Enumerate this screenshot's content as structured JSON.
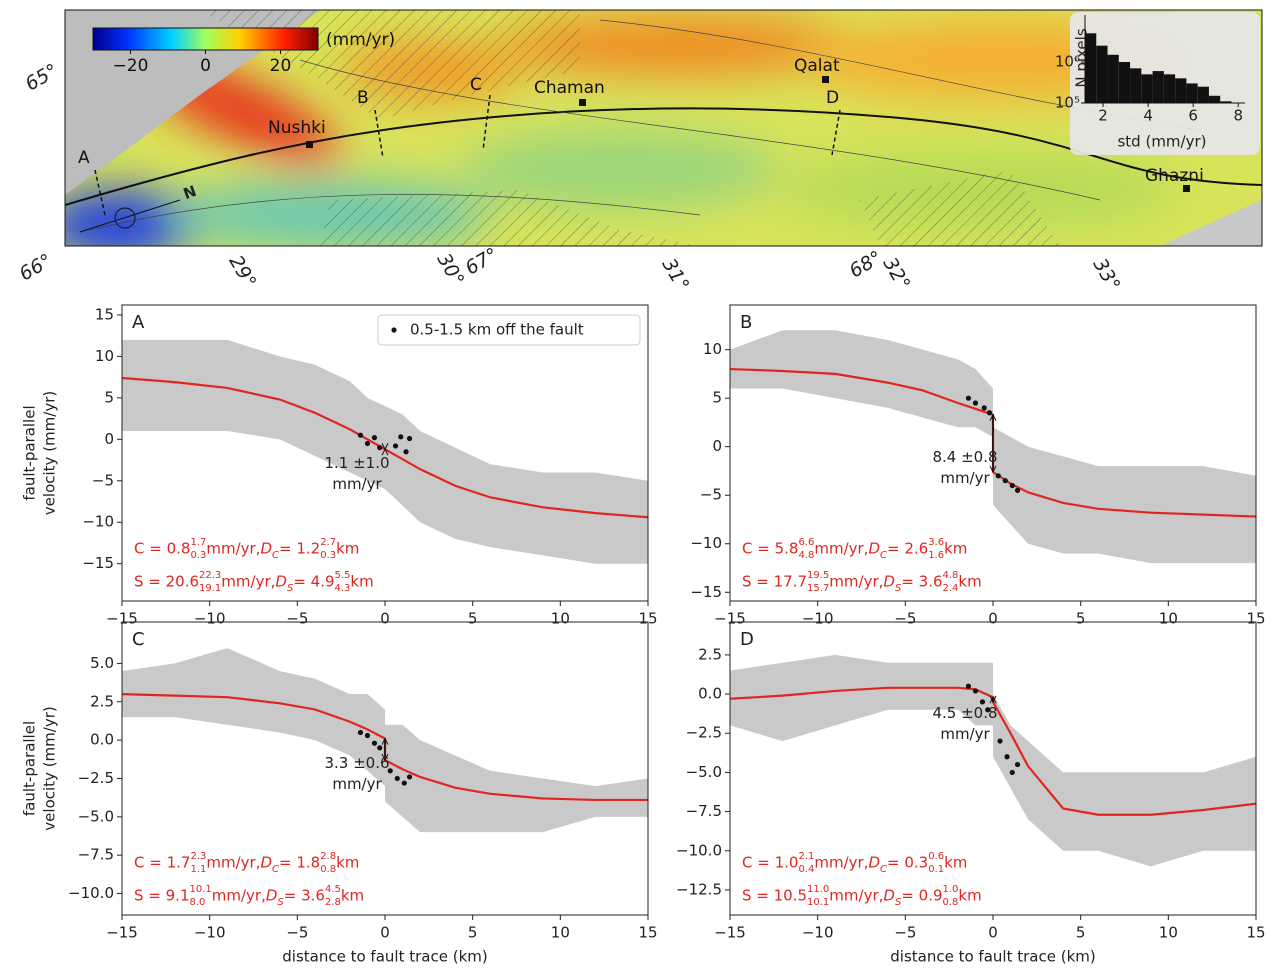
{
  "map": {
    "colorbar": {
      "label": "(mm/yr)",
      "lim": [
        -30,
        30
      ],
      "ticks": [
        {
          "value": -20,
          "label": "−20"
        },
        0,
        20
      ]
    },
    "places": [
      "Nushki",
      "Chaman",
      "Qalat",
      "Ghazni"
    ],
    "profiles": [
      "A",
      "B",
      "C",
      "D"
    ],
    "north": "N",
    "edge_labels": [
      "65°",
      "66°",
      "29°",
      "30°",
      "67°",
      "31°",
      "68°",
      "32°",
      "33°"
    ],
    "inset": {
      "type": "histogram",
      "ylabel": "N pixels",
      "xlabel": "std (mm/yr)",
      "color": "#111111",
      "bins": [
        1.2,
        1.7,
        2.2,
        2.7,
        3.2,
        3.7,
        4.2,
        4.7,
        5.2,
        5.7,
        6.2,
        6.7,
        7.2,
        7.7,
        8.2
      ],
      "counts": [
        5000000,
        2500000,
        1500000,
        1000000,
        700000,
        500000,
        600000,
        500000,
        400000,
        300000,
        250000,
        150000,
        110000,
        100000
      ],
      "xlim": [
        1.2,
        8.3
      ],
      "ylim": [
        100000,
        14000000
      ],
      "yscale": "log",
      "xticks": [
        2,
        4,
        6,
        8
      ],
      "yticks": [
        {
          "value": 100000,
          "label": "10⁵"
        },
        {
          "value": 1000000,
          "label": "10⁶"
        }
      ]
    }
  },
  "chart_data": [
    {
      "type": "line",
      "title": "A",
      "legend": "upper right",
      "ylabel": [
        "fault-parallel",
        "velocity (mm/yr)"
      ],
      "xlim": [
        -15,
        15
      ],
      "ylim": [
        -19.5,
        16.2
      ],
      "xticks": [
        {
          "value": -15,
          "label": "−15"
        },
        {
          "value": -10,
          "label": "−10"
        },
        {
          "value": -5,
          "label": "−5"
        },
        0,
        5,
        10,
        15
      ],
      "yticks": [
        15,
        10,
        5,
        0,
        {
          "value": -5,
          "label": "−5"
        },
        {
          "value": -10,
          "label": "−10"
        },
        {
          "value": -15,
          "label": "−15"
        }
      ],
      "x": [
        -15,
        -12,
        -9,
        -6,
        -4,
        -2,
        -1,
        0,
        0,
        1,
        2,
        4,
        6,
        9,
        12,
        15
      ],
      "band": {
        "color": "#c9c9c9",
        "upper": [
          12,
          12,
          12,
          10,
          9,
          7,
          5,
          4,
          4,
          3,
          1,
          -1,
          -3,
          -4,
          -4,
          -5
        ],
        "lower": [
          1,
          1,
          1,
          0,
          -2,
          -4,
          -5,
          -6,
          -6,
          -8,
          -10,
          -12,
          -13,
          -14,
          -15,
          -15
        ]
      },
      "series": [
        {
          "color": "#e0261f",
          "values": [
            7.4,
            6.9,
            6.2,
            4.8,
            3.2,
            1.2,
            0.0,
            -1.2,
            -1.2,
            -2.4,
            -3.6,
            -5.6,
            -7.0,
            -8.2,
            -8.9,
            -9.4
          ]
        },
        {
          "name": "0.5-1.5 km off the fault",
          "color": "#111111",
          "x": [
            -1.4,
            -1.0,
            -0.6,
            -0.3,
            0.6,
            0.9,
            1.2,
            1.4
          ],
          "values": [
            0.5,
            -0.5,
            0.2,
            -1.0,
            -0.8,
            0.3,
            -1.5,
            0.1
          ]
        }
      ],
      "offset_label": [
        "1.1 ±1.0",
        "mm/yr"
      ],
      "annotations": [
        [
          {
            "text": "C = 0.8"
          },
          {
            "sup": "1.7",
            "sub": "0.3"
          },
          {
            "text": " mm/yr, "
          },
          {
            "text": "D",
            "italic": true
          },
          {
            "sub": "C"
          },
          {
            "text": " = 1.2"
          },
          {
            "sup": "2.7",
            "sub": "0.3"
          },
          {
            "text": " km"
          }
        ],
        [
          {
            "text": "S = 20.6"
          },
          {
            "sup": "22.3",
            "sub": "19.1"
          },
          {
            "text": " mm/yr, "
          },
          {
            "text": "D",
            "italic": true
          },
          {
            "sub": "S"
          },
          {
            "text": " = 4.9"
          },
          {
            "sup": "5.5",
            "sub": "4.3"
          },
          {
            "text": " km"
          }
        ]
      ]
    },
    {
      "type": "line",
      "title": "B",
      "xlim": [
        -15,
        15
      ],
      "ylim": [
        -15.9,
        14.6
      ],
      "xticks": [
        {
          "value": -15,
          "label": "−15"
        },
        {
          "value": -10,
          "label": "−10"
        },
        {
          "value": -5,
          "label": "−5"
        },
        0,
        5,
        10,
        15
      ],
      "yticks": [
        10,
        5,
        0,
        {
          "value": -5,
          "label": "−5"
        },
        {
          "value": -10,
          "label": "−10"
        },
        {
          "value": -15,
          "label": "−15"
        }
      ],
      "x": [
        -15,
        -12,
        -9,
        -6,
        -4,
        -2,
        -1,
        0,
        0,
        1,
        2,
        4,
        6,
        9,
        12,
        15
      ],
      "band": {
        "color": "#c9c9c9",
        "upper": [
          10,
          12,
          12,
          11,
          10,
          9,
          8,
          6,
          2,
          1,
          0,
          -1,
          -2,
          -2,
          -2,
          -3
        ],
        "lower": [
          6,
          6,
          5,
          4,
          3,
          2,
          2,
          1,
          -6,
          -8,
          -10,
          -11,
          -11,
          -12,
          -12,
          -12
        ]
      },
      "series": [
        {
          "color": "#e0261f",
          "values": [
            8.0,
            7.8,
            7.5,
            6.6,
            5.8,
            4.5,
            3.9,
            3.3,
            -2.6,
            -3.8,
            -4.7,
            -5.8,
            -6.4,
            -6.8,
            -7.0,
            -7.2
          ]
        },
        {
          "color": "#111111",
          "x": [
            -1.4,
            -1.0,
            -0.5,
            -0.2,
            0.3,
            0.7,
            1.1,
            1.4
          ],
          "values": [
            5,
            4.5,
            4,
            3.5,
            -3,
            -3.5,
            -4,
            -4.5
          ]
        }
      ],
      "offset_label": [
        "8.4 ±0.8",
        "mm/yr"
      ],
      "annotations": [
        [
          {
            "text": "C = 5.8"
          },
          {
            "sup": "6.6",
            "sub": "4.8"
          },
          {
            "text": " mm/yr, "
          },
          {
            "text": "D",
            "italic": true
          },
          {
            "sub": "C"
          },
          {
            "text": " = 2.6"
          },
          {
            "sup": "3.6",
            "sub": "1.6"
          },
          {
            "text": " km"
          }
        ],
        [
          {
            "text": "S = 17.7"
          },
          {
            "sup": "19.5",
            "sub": "15.7"
          },
          {
            "text": " mm/yr, "
          },
          {
            "text": "D",
            "italic": true
          },
          {
            "sub": "S"
          },
          {
            "text": " = 3.6"
          },
          {
            "sup": "4.8",
            "sub": "2.4"
          },
          {
            "text": " km"
          }
        ]
      ]
    },
    {
      "type": "line",
      "title": "C",
      "ylabel": [
        "fault-parallel",
        "velocity (mm/yr)"
      ],
      "xlabel": "distance to fault trace (km)",
      "xlim": [
        -15,
        15
      ],
      "ylim": [
        -11.4,
        7.7
      ],
      "xticks": [
        {
          "value": -15,
          "label": "−15"
        },
        {
          "value": -10,
          "label": "−10"
        },
        {
          "value": -5,
          "label": "−5"
        },
        0,
        5,
        10,
        15
      ],
      "yticks": [
        {
          "value": 5,
          "label": "5.0"
        },
        2.5,
        {
          "value": 0,
          "label": "0.0"
        },
        {
          "value": -2.5,
          "label": "−2.5"
        },
        {
          "value": -5,
          "label": "−5.0"
        },
        {
          "value": -7.5,
          "label": "−7.5"
        },
        {
          "value": -10,
          "label": "−10.0"
        }
      ],
      "x": [
        -15,
        -12,
        -9,
        -6,
        -4,
        -2,
        -1,
        0,
        0,
        1,
        2,
        4,
        6,
        9,
        12,
        15
      ],
      "band": {
        "color": "#c9c9c9",
        "upper": [
          4.5,
          5,
          6,
          4.5,
          4,
          3,
          3,
          2,
          1,
          1,
          0,
          -1,
          -2,
          -2.5,
          -3,
          -2.5
        ],
        "lower": [
          1.5,
          1.5,
          1,
          0.5,
          0,
          -1,
          -2,
          -3,
          -4,
          -5,
          -6,
          -6,
          -6,
          -6,
          -5,
          -5
        ]
      },
      "series": [
        {
          "color": "#e0261f",
          "values": [
            3.0,
            2.9,
            2.8,
            2.4,
            2.0,
            1.2,
            0.7,
            0.1,
            -1.3,
            -1.9,
            -2.4,
            -3.1,
            -3.5,
            -3.8,
            -3.9,
            -3.9
          ]
        },
        {
          "color": "#111111",
          "x": [
            -1.4,
            -1.0,
            -0.6,
            -0.3,
            0.3,
            0.7,
            1.1,
            1.4
          ],
          "values": [
            0.5,
            0.3,
            -0.2,
            -0.5,
            -2,
            -2.5,
            -2.8,
            -2.4
          ]
        }
      ],
      "offset_label": [
        "3.3 ±0.6",
        "mm/yr"
      ],
      "annotations": [
        [
          {
            "text": "C = 1.7"
          },
          {
            "sup": "2.3",
            "sub": "1.1"
          },
          {
            "text": " mm/yr, "
          },
          {
            "text": "D",
            "italic": true
          },
          {
            "sub": "C"
          },
          {
            "text": " = 1.8"
          },
          {
            "sup": "2.8",
            "sub": "0.8"
          },
          {
            "text": " km"
          }
        ],
        [
          {
            "text": "S = 9.1"
          },
          {
            "sup": "10.1",
            "sub": "8.0"
          },
          {
            "text": " mm/yr, "
          },
          {
            "text": "D",
            "italic": true
          },
          {
            "sub": "S"
          },
          {
            "text": " = 3.6"
          },
          {
            "sup": "4.5",
            "sub": "2.8"
          },
          {
            "text": " km"
          }
        ]
      ]
    },
    {
      "type": "line",
      "title": "D",
      "xlabel": "distance to fault trace (km)",
      "xlim": [
        -15,
        15
      ],
      "ylim": [
        -14.1,
        4.6
      ],
      "xticks": [
        {
          "value": -15,
          "label": "−15"
        },
        {
          "value": -10,
          "label": "−10"
        },
        {
          "value": -5,
          "label": "−5"
        },
        0,
        5,
        10,
        15
      ],
      "yticks": [
        2.5,
        {
          "value": 0,
          "label": "0.0"
        },
        {
          "value": -2.5,
          "label": "−2.5"
        },
        {
          "value": -5,
          "label": "−5.0"
        },
        {
          "value": -7.5,
          "label": "−7.5"
        },
        {
          "value": -10,
          "label": "−10.0"
        },
        {
          "value": -12.5,
          "label": "−12.5"
        }
      ],
      "x": [
        -15,
        -12,
        -9,
        -6,
        -4,
        -2,
        -1,
        0,
        0,
        1,
        2,
        4,
        6,
        9,
        12,
        15
      ],
      "band": {
        "color": "#c9c9c9",
        "upper": [
          1.5,
          2,
          2.5,
          2,
          2,
          2,
          2,
          2,
          0,
          -2,
          -3,
          -5,
          -5,
          -5,
          -5,
          -4
        ],
        "lower": [
          -2,
          -3,
          -2,
          -1,
          -1,
          -1,
          -2,
          -2,
          -4,
          -6,
          -8,
          -10,
          -10,
          -11,
          -10,
          -10
        ]
      },
      "series": [
        {
          "color": "#e0261f",
          "values": [
            -0.3,
            -0.1,
            0.2,
            0.4,
            0.4,
            0.4,
            0.3,
            -0.2,
            -0.5,
            -2.5,
            -4.6,
            -7.3,
            -7.7,
            -7.7,
            -7.4,
            -7.0
          ]
        },
        {
          "color": "#111111",
          "x": [
            -1.4,
            -1.0,
            -0.6,
            -0.3,
            0.4,
            0.8,
            1.1,
            1.4
          ],
          "values": [
            0.5,
            0.2,
            -0.5,
            -1,
            -3,
            -4,
            -5,
            -4.5
          ]
        }
      ],
      "offset_label": [
        "4.5 ±0.8",
        "mm/yr"
      ],
      "annotations": [
        [
          {
            "text": "C = 1.0"
          },
          {
            "sup": "2.1",
            "sub": "0.4"
          },
          {
            "text": " mm/yr, "
          },
          {
            "text": "D",
            "italic": true
          },
          {
            "sub": "C"
          },
          {
            "text": " = 0.3"
          },
          {
            "sup": "0.6",
            "sub": "0.1"
          },
          {
            "text": " km"
          }
        ],
        [
          {
            "text": "S = 10.5"
          },
          {
            "sup": "11.0",
            "sub": "10.1"
          },
          {
            "text": " mm/yr, "
          },
          {
            "text": "D",
            "italic": true
          },
          {
            "sub": "S"
          },
          {
            "text": " = 0.9"
          },
          {
            "sup": "1.0",
            "sub": "0.8"
          },
          {
            "text": " km"
          }
        ]
      ]
    }
  ]
}
